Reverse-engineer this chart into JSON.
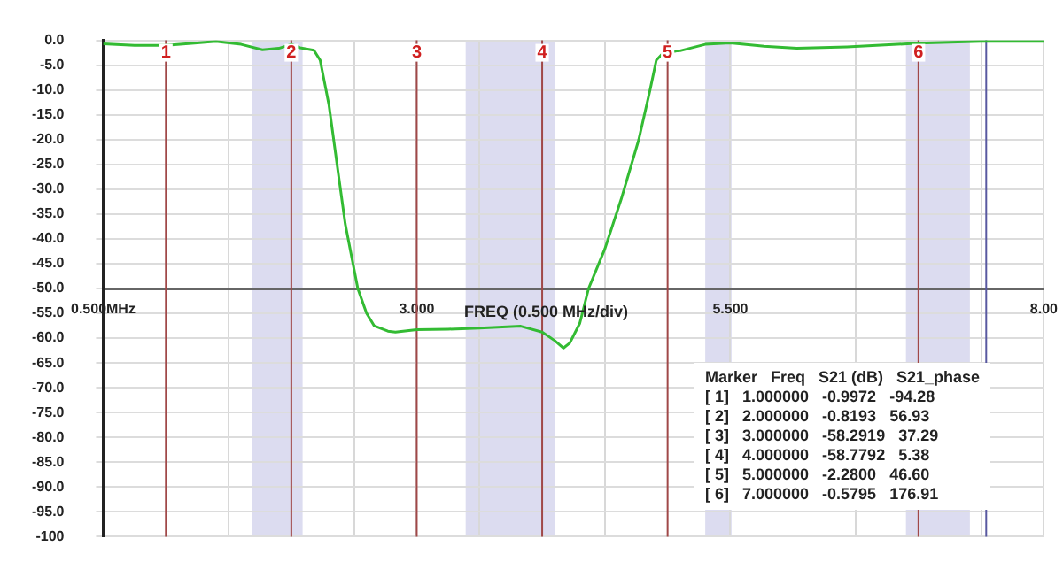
{
  "chart_data": {
    "type": "line",
    "xlabel": "FREQ (0.500 MHz/div)",
    "series": [
      {
        "color": "#33bb33",
        "x": [
          0.5,
          0.75,
          1.0,
          1.25,
          1.4,
          1.6,
          1.77,
          1.9,
          2.0,
          2.07,
          2.18,
          2.23,
          2.3,
          2.37,
          2.43,
          2.53,
          2.6,
          2.66,
          2.77,
          2.83,
          3.0,
          3.25,
          3.5,
          3.83,
          4.0,
          4.1,
          4.17,
          4.22,
          4.3,
          4.37,
          4.5,
          4.63,
          4.77,
          4.86,
          4.91,
          4.97,
          5.0,
          5.1,
          5.3,
          5.5,
          5.77,
          6.03,
          6.43,
          7.0,
          7.5,
          8.0
        ],
        "values": [
          -0.7,
          -1.0,
          -0.9972,
          -0.5,
          -0.2,
          -0.8,
          -1.9,
          -1.6,
          -0.8193,
          -1.5,
          -2,
          -4,
          -13,
          -26,
          -37,
          -50,
          -55,
          -57.5,
          -58.6,
          -58.8,
          -58.2919,
          -58.2,
          -58,
          -57.6,
          -58.7792,
          -60.5,
          -62,
          -61,
          -57,
          -50,
          -42,
          -32,
          -20,
          -10,
          -4,
          -2.4,
          -2.28,
          -2.1,
          -0.8,
          -0.5,
          -1.2,
          -1.6,
          -1.3,
          -0.5795,
          -0.2,
          -0.2
        ]
      }
    ],
    "xlim": [
      0.5,
      8.0
    ],
    "xticks": [
      {
        "value": 0.5,
        "label": "0.500MHz"
      },
      {
        "value": 1.5,
        "label": null
      },
      {
        "value": 2.5,
        "label": null
      },
      {
        "value": 3.0,
        "label": "3.000"
      },
      {
        "value": 3.5,
        "label": null
      },
      {
        "value": 4.5,
        "label": null
      },
      {
        "value": 5.5,
        "label": "5.500"
      },
      {
        "value": 6.5,
        "label": null
      },
      {
        "value": 7.5,
        "label": null
      },
      {
        "value": 8.0,
        "label": "8.00"
      }
    ],
    "ylim": [
      -100,
      0
    ],
    "yticks": [
      {
        "value": 0,
        "label": "0.0"
      },
      {
        "value": -5,
        "label": "-5.0"
      },
      {
        "value": -10,
        "label": "-10.0"
      },
      {
        "value": -15,
        "label": "-15.0"
      },
      {
        "value": -20,
        "label": "-20.0"
      },
      {
        "value": -25,
        "label": "-25.0"
      },
      {
        "value": -30,
        "label": "-30.0"
      },
      {
        "value": -35,
        "label": "-35.0"
      },
      {
        "value": -40,
        "label": "-40.0"
      },
      {
        "value": -45,
        "label": "-45.0"
      },
      {
        "value": -50,
        "label": "-50.0"
      },
      {
        "value": -55,
        "label": "-55.0"
      },
      {
        "value": -60,
        "label": "-60.0"
      },
      {
        "value": -65,
        "label": "-65.0"
      },
      {
        "value": -70,
        "label": "-70.0"
      },
      {
        "value": -75,
        "label": "-75.0"
      },
      {
        "value": -80,
        "label": "-80.0"
      },
      {
        "value": -85,
        "label": "-85.0"
      },
      {
        "value": -90,
        "label": "-90.0"
      },
      {
        "value": -95,
        "label": "-95.0"
      },
      -100
    ],
    "grid": true,
    "legend": false,
    "marker": "none",
    "line_style": "solid",
    "ref_lines": [
      {
        "axis": "x",
        "value": 1,
        "color": "#a04848"
      },
      {
        "axis": "x",
        "value": 2,
        "color": "#a04848"
      },
      {
        "axis": "x",
        "value": 3,
        "color": "#a04848"
      },
      {
        "axis": "x",
        "value": 4,
        "color": "#a04848"
      },
      {
        "axis": "x",
        "value": 5,
        "color": "#a04848"
      },
      {
        "axis": "x",
        "value": 7,
        "color": "#a04848"
      },
      {
        "axis": "x",
        "value": 7.54,
        "color": "#5858a0"
      }
    ],
    "bands": [
      {
        "axis": "x",
        "from": 1.69,
        "to": 2.09,
        "color": "#dcdcf0"
      },
      {
        "axis": "x",
        "from": 3.39,
        "to": 4.1,
        "color": "#dcdcf0"
      },
      {
        "axis": "x",
        "from": 5.3,
        "to": 5.51,
        "color": "#dcdcf0"
      },
      {
        "axis": "x",
        "from": 6.9,
        "to": 7.41,
        "color": "#dcdcf0"
      }
    ],
    "annotations": [
      {
        "text": "1",
        "x": 1
      },
      {
        "text": "2",
        "x": 2
      },
      {
        "text": "3",
        "x": 3
      },
      {
        "text": "4",
        "x": 4
      },
      {
        "text": "5",
        "x": 5
      },
      {
        "text": "6",
        "x": 7
      },
      "Marker   Freq   S21 (dB)   S21_phase",
      "[ 1]   1.000000   -0.9972   -94.28",
      "[ 2]   2.000000   -0.8193   56.93",
      "[ 3]   3.000000   -58.2919   37.29",
      "[ 4]   4.000000   -58.7792   5.38",
      "[ 5]   5.000000   -2.2800   46.60",
      "[ 6]   7.000000   -0.5795   176.91"
    ]
  }
}
